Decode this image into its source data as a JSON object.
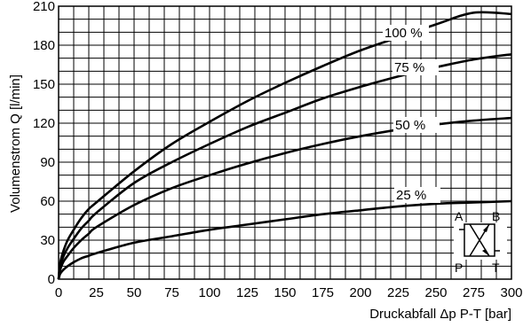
{
  "chart_data": {
    "type": "line",
    "title": "",
    "xlabel": "Druckabfall Δp P-T [bar]",
    "ylabel": "Volumenstrom Q [l/min]",
    "xlim": [
      0,
      300
    ],
    "ylim": [
      0,
      210
    ],
    "xticks": [
      0,
      25,
      50,
      75,
      100,
      125,
      150,
      175,
      200,
      225,
      250,
      275,
      300
    ],
    "yticks": [
      0,
      30,
      60,
      90,
      120,
      150,
      180,
      210
    ],
    "grid": true,
    "x": [
      0,
      1,
      3,
      6,
      10,
      15,
      20,
      25,
      50,
      75,
      100,
      125,
      150,
      175,
      200,
      225,
      250,
      275,
      300
    ],
    "series": [
      {
        "name": "100 %",
        "values": [
          0,
          12,
          21,
          30,
          38,
          47,
          54,
          59,
          83,
          104,
          121,
          137,
          151,
          164,
          176,
          186,
          196,
          205,
          204
        ]
      },
      {
        "name": "75 %",
        "values": [
          0,
          10,
          17,
          24,
          31,
          39,
          45,
          51,
          74,
          90,
          104,
          117,
          128,
          139,
          148,
          156,
          163,
          169,
          173
        ]
      },
      {
        "name": "50 %",
        "values": [
          0,
          7,
          13,
          18,
          24,
          30,
          35,
          40,
          57,
          70,
          80,
          89,
          97,
          104,
          110,
          115,
          119,
          122,
          124
        ]
      },
      {
        "name": "25 %",
        "values": [
          0,
          4,
          7,
          10,
          13,
          16,
          18,
          20,
          28,
          33,
          38,
          42,
          46,
          50,
          53,
          56,
          58,
          59,
          60
        ]
      }
    ],
    "annotations": {
      "symbol_labels": [
        "A",
        "B",
        "P",
        "T"
      ]
    }
  }
}
